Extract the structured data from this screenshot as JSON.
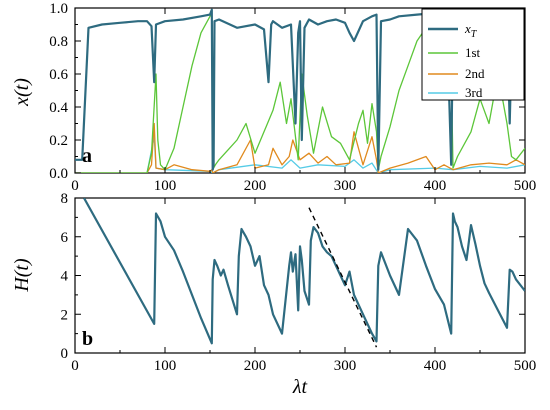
{
  "chart_data": [
    {
      "type": "line",
      "panel_label": "a",
      "xlim": [
        0,
        500
      ],
      "ylim": [
        0,
        1.0
      ],
      "ylabel": "x(t)",
      "x_ticks": [
        0,
        100,
        200,
        300,
        400,
        500
      ],
      "y_ticks": [
        "0.0",
        "0.2",
        "0.4",
        "0.6",
        "0.8",
        "1.0"
      ],
      "legend": "top-right",
      "series": [
        {
          "name": "x_T",
          "color": "#2e6b80",
          "x": [
            0,
            8,
            15,
            30,
            50,
            70,
            80,
            85,
            88,
            90,
            100,
            120,
            140,
            150,
            152,
            153,
            154,
            155,
            160,
            180,
            200,
            210,
            215,
            218,
            220,
            230,
            240,
            245,
            248,
            250,
            252,
            255,
            260,
            270,
            280,
            290,
            300,
            305,
            310,
            320,
            330,
            335,
            337,
            340,
            350,
            360,
            380,
            400,
            410,
            415,
            418,
            420,
            425,
            430,
            450,
            460,
            470,
            480,
            483,
            486,
            490,
            500
          ],
          "y": [
            0.08,
            0.08,
            0.88,
            0.9,
            0.91,
            0.92,
            0.92,
            0.89,
            0.55,
            0.9,
            0.92,
            0.93,
            0.95,
            0.96,
            0.99,
            0.02,
            0.05,
            0.92,
            0.93,
            0.88,
            0.9,
            0.87,
            0.55,
            0.9,
            0.92,
            0.88,
            0.9,
            0.3,
            0.85,
            0.92,
            0.2,
            0.88,
            0.93,
            0.9,
            0.92,
            0.93,
            0.91,
            0.85,
            0.8,
            0.92,
            0.95,
            0.96,
            0.02,
            0.92,
            0.93,
            0.95,
            0.96,
            0.97,
            0.96,
            0.6,
            0.05,
            0.9,
            0.91,
            0.92,
            0.95,
            0.96,
            0.97,
            0.98,
            0.3,
            0.95,
            0.96,
            0.98
          ]
        },
        {
          "name": "1st",
          "color": "#5cc639",
          "x": [
            0,
            80,
            85,
            90,
            92,
            95,
            100,
            110,
            120,
            130,
            140,
            150,
            152,
            153,
            156,
            160,
            170,
            180,
            190,
            200,
            210,
            220,
            228,
            235,
            240,
            248,
            252,
            258,
            265,
            275,
            285,
            295,
            305,
            315,
            320,
            325,
            330,
            335,
            337,
            340,
            350,
            360,
            370,
            380,
            390,
            400,
            410,
            418,
            420,
            425,
            440,
            450,
            460,
            470,
            480,
            485,
            490,
            500
          ],
          "y": [
            0.0,
            0.0,
            0.12,
            0.6,
            0.2,
            0.05,
            0.02,
            0.15,
            0.4,
            0.65,
            0.85,
            0.95,
            0.97,
            0.02,
            0.05,
            0.08,
            0.14,
            0.2,
            0.3,
            0.12,
            0.25,
            0.38,
            0.55,
            0.3,
            0.45,
            0.08,
            0.6,
            0.35,
            0.12,
            0.4,
            0.22,
            0.18,
            0.08,
            0.3,
            0.38,
            0.18,
            0.42,
            0.25,
            0.02,
            0.1,
            0.28,
            0.5,
            0.65,
            0.8,
            0.88,
            0.92,
            0.95,
            0.65,
            0.03,
            0.1,
            0.25,
            0.45,
            0.3,
            0.6,
            0.3,
            0.1,
            0.08,
            0.15
          ]
        },
        {
          "name": "2nd",
          "color": "#e08a1e",
          "x": [
            0,
            80,
            85,
            88,
            90,
            100,
            110,
            130,
            150,
            152,
            153,
            160,
            180,
            195,
            200,
            215,
            220,
            230,
            238,
            242,
            250,
            260,
            270,
            280,
            290,
            305,
            310,
            320,
            330,
            335,
            337,
            350,
            370,
            390,
            400,
            410,
            420,
            440,
            460,
            480,
            490,
            500
          ],
          "y": [
            0.0,
            0.0,
            0.05,
            0.3,
            0.03,
            0.02,
            0.05,
            0.02,
            0.01,
            0.02,
            0.0,
            0.02,
            0.05,
            0.2,
            0.03,
            0.05,
            0.15,
            0.05,
            0.1,
            0.2,
            0.08,
            0.12,
            0.06,
            0.1,
            0.05,
            0.06,
            0.25,
            0.05,
            0.22,
            0.08,
            0.0,
            0.03,
            0.06,
            0.1,
            0.02,
            0.05,
            0.02,
            0.05,
            0.06,
            0.05,
            0.08,
            0.05
          ]
        },
        {
          "name": "3rd",
          "color": "#55cbe6",
          "x": [
            0,
            80,
            88,
            90,
            100,
            150,
            153,
            160,
            200,
            230,
            240,
            250,
            270,
            300,
            310,
            320,
            330,
            337,
            350,
            400,
            420,
            450,
            480,
            500
          ],
          "y": [
            0.0,
            0.0,
            0.22,
            0.03,
            0.02,
            0.01,
            0.0,
            0.02,
            0.05,
            0.03,
            0.08,
            0.03,
            0.05,
            0.04,
            0.08,
            0.03,
            0.06,
            0.0,
            0.02,
            0.03,
            0.02,
            0.04,
            0.03,
            0.05
          ]
        }
      ]
    },
    {
      "type": "line",
      "panel_label": "b",
      "xlim": [
        0,
        500
      ],
      "ylim": [
        0,
        8
      ],
      "xlabel": "λt",
      "ylabel": "H(t)",
      "x_ticks": [
        0,
        100,
        200,
        300,
        400,
        500
      ],
      "y_ticks": [
        "0",
        "2",
        "4",
        "6",
        "8"
      ],
      "series": [
        {
          "color": "#2e6b80",
          "x": [
            10,
            88,
            90,
            95,
            100,
            110,
            120,
            130,
            140,
            152,
            153,
            155,
            158,
            162,
            165,
            170,
            180,
            182,
            185,
            190,
            195,
            200,
            205,
            210,
            215,
            220,
            230,
            238,
            240,
            242,
            245,
            248,
            250,
            252,
            255,
            260,
            262,
            265,
            270,
            275,
            280,
            285,
            290,
            295,
            300,
            305,
            310,
            320,
            330,
            335,
            337,
            340,
            345,
            350,
            360,
            370,
            380,
            390,
            400,
            410,
            418,
            420,
            422,
            425,
            430,
            435,
            440,
            445,
            450,
            455,
            460,
            470,
            480,
            483,
            486,
            490,
            500
          ],
          "y": [
            8.0,
            1.5,
            7.2,
            6.8,
            6.0,
            5.3,
            4.2,
            3.0,
            1.8,
            0.5,
            3.8,
            4.8,
            4.5,
            4.0,
            4.3,
            3.5,
            2.0,
            5.0,
            6.4,
            6.0,
            5.5,
            4.5,
            5.0,
            3.5,
            3.0,
            2.0,
            1.0,
            4.5,
            5.2,
            4.2,
            5.1,
            2.2,
            5.5,
            4.8,
            3.2,
            2.5,
            5.8,
            6.5,
            6.2,
            5.5,
            5.2,
            5.0,
            4.5,
            4.0,
            3.5,
            4.2,
            3.0,
            2.0,
            1.0,
            0.6,
            4.5,
            5.2,
            4.6,
            4.0,
            3.0,
            6.4,
            5.8,
            4.5,
            3.3,
            2.5,
            1.0,
            7.2,
            6.8,
            6.5,
            5.5,
            4.8,
            6.6,
            5.6,
            4.5,
            3.6,
            3.1,
            2.2,
            1.3,
            4.3,
            4.2,
            3.8,
            3.2
          ]
        }
      ],
      "reference_line": {
        "x": [
          260,
          335
        ],
        "y": [
          7.5,
          0.3
        ],
        "style": "dashed",
        "color": "#000000"
      }
    }
  ]
}
